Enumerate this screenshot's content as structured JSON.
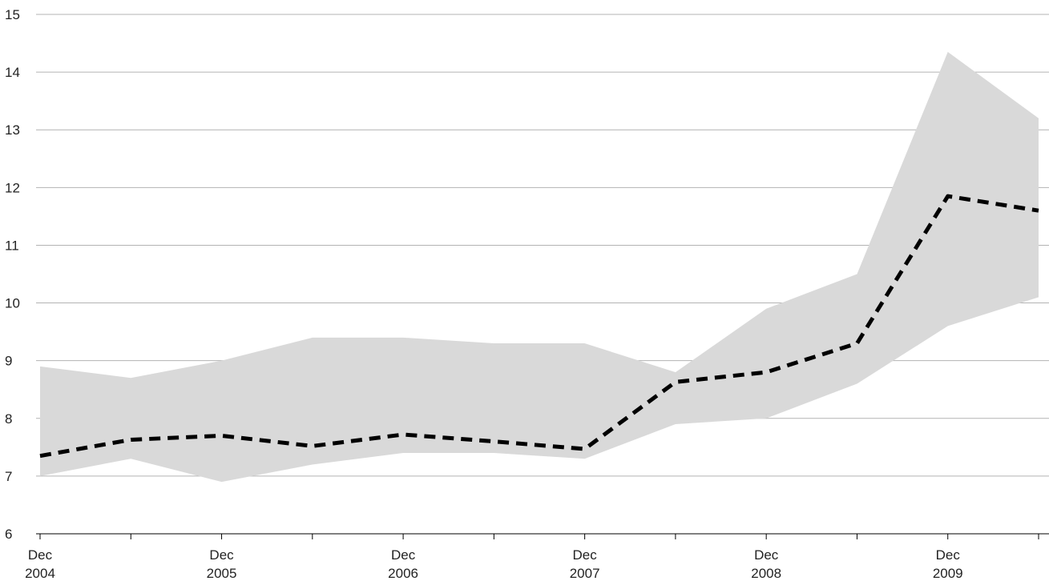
{
  "chart_data": {
    "type": "area",
    "x": [
      "Dec 2004",
      "Jun 2005",
      "Dec 2005",
      "Jun 2006",
      "Dec 2006",
      "Jun 2007",
      "Dec 2007",
      "Jun 2008",
      "Dec 2008",
      "Jun 2009",
      "Dec 2009",
      "Jun 2010"
    ],
    "series": [
      {
        "role": "range-upper",
        "values": [
          8.9,
          8.7,
          9.0,
          9.4,
          9.4,
          9.3,
          9.3,
          8.8,
          9.9,
          10.5,
          14.35,
          13.2
        ]
      },
      {
        "role": "range-lower",
        "values": [
          7.0,
          7.3,
          6.9,
          7.2,
          7.4,
          7.4,
          7.3,
          7.9,
          8.0,
          8.6,
          9.6,
          10.1
        ]
      },
      {
        "role": "median",
        "values": [
          7.35,
          7.63,
          7.7,
          7.52,
          7.72,
          7.6,
          7.47,
          8.63,
          8.8,
          9.3,
          11.85,
          11.6
        ]
      }
    ],
    "y_ticks": [
      "6",
      "7",
      "8",
      "9",
      "10",
      "11",
      "12",
      "13",
      "14",
      "15"
    ],
    "x_tick_labels": [
      {
        "month": "Dec",
        "year": "2004"
      },
      {
        "month": "Dec",
        "year": "2005"
      },
      {
        "month": "Dec",
        "year": "2006"
      },
      {
        "month": "Dec",
        "year": "2007"
      },
      {
        "month": "Dec",
        "year": "2008"
      },
      {
        "month": "Dec",
        "year": "2009"
      }
    ],
    "ylim": [
      6,
      15
    ],
    "title": "",
    "xlabel": "",
    "ylabel": "",
    "grid": true,
    "legend": "none",
    "colors": {
      "band": "#d9d9d9",
      "line": "#000000",
      "grid": "#b3b3b3",
      "axis": "#000000"
    }
  }
}
